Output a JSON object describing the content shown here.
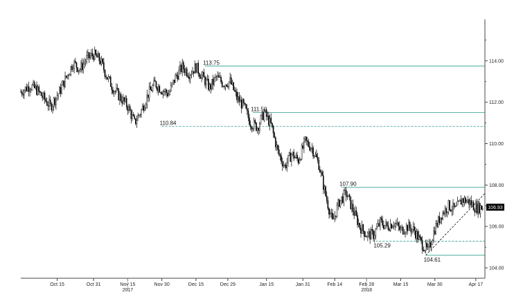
{
  "chart_data": {
    "type": "line",
    "style": "candlestick",
    "title": "",
    "xlabel": "",
    "ylabel": "",
    "ylim": [
      103.5,
      116.0
    ],
    "grid": false,
    "axis_side": "right",
    "y_ticks": [
      104.0,
      106.0,
      108.0,
      110.0,
      112.0,
      114.0
    ],
    "y_tick_labels": [
      "104.00",
      "106.00",
      "108.00",
      "110.00",
      "112.00",
      "114.00"
    ],
    "x_range": [
      "2017-09-29",
      "2018-04-21"
    ],
    "x_ticks": [
      {
        "date": "2017-10-15",
        "label": "Oct 15"
      },
      {
        "date": "2017-10-31",
        "label": "Oct 31"
      },
      {
        "date": "2017-11-15",
        "label": "Nov 15"
      },
      {
        "date": "2017-11-30",
        "label": "Nov 30"
      },
      {
        "date": "2017-12-15",
        "label": "Dec 15"
      },
      {
        "date": "2017-12-29",
        "label": "Dec 29"
      },
      {
        "date": "2018-01-15",
        "label": "Jan 15"
      },
      {
        "date": "2018-01-31",
        "label": "Jan 31"
      },
      {
        "date": "2018-02-14",
        "label": "Feb 14"
      },
      {
        "date": "2018-02-28",
        "label": "Feb 28"
      },
      {
        "date": "2018-03-15",
        "label": "Mar 15"
      },
      {
        "date": "2018-03-30",
        "label": "Mar 30"
      },
      {
        "date": "2018-04-17",
        "label": "Apr 17"
      }
    ],
    "year_labels": [
      {
        "date": "2017-11-15",
        "label": "2017"
      },
      {
        "date": "2018-02-28",
        "label": "2018"
      }
    ],
    "series": [
      {
        "x": [
          "2017-09-29",
          "2017-10-03",
          "2017-10-06",
          "2017-10-09",
          "2017-10-12",
          "2017-10-16",
          "2017-10-19",
          "2017-10-22",
          "2017-10-25",
          "2017-10-28",
          "2017-10-31",
          "2017-11-03",
          "2017-11-06",
          "2017-11-09",
          "2017-11-12",
          "2017-11-15",
          "2017-11-18",
          "2017-11-21",
          "2017-11-24",
          "2017-11-27",
          "2017-11-30",
          "2017-12-03",
          "2017-12-06",
          "2017-12-09",
          "2017-12-12",
          "2017-12-15",
          "2017-12-18",
          "2017-12-21",
          "2017-12-24",
          "2017-12-27",
          "2017-12-30",
          "2018-01-02",
          "2018-01-05",
          "2018-01-08",
          "2018-01-11",
          "2018-01-14",
          "2018-01-17",
          "2018-01-20",
          "2018-01-23",
          "2018-01-26",
          "2018-01-29",
          "2018-02-01",
          "2018-02-04",
          "2018-02-07",
          "2018-02-10",
          "2018-02-13",
          "2018-02-16",
          "2018-02-19",
          "2018-02-22",
          "2018-02-25",
          "2018-02-28",
          "2018-03-03",
          "2018-03-06",
          "2018-03-09",
          "2018-03-12",
          "2018-03-15",
          "2018-03-18",
          "2018-03-21",
          "2018-03-24",
          "2018-03-27",
          "2018-03-30",
          "2018-04-02",
          "2018-04-05",
          "2018-04-08",
          "2018-04-11",
          "2018-04-14",
          "2018-04-17",
          "2018-04-20"
        ],
        "values": [
          112.5,
          112.8,
          112.6,
          112.2,
          111.8,
          112.5,
          113.2,
          113.9,
          113.6,
          114.1,
          114.3,
          114.0,
          113.2,
          112.6,
          112.2,
          111.8,
          111.0,
          111.6,
          112.4,
          112.9,
          112.6,
          112.4,
          113.2,
          113.7,
          113.4,
          113.7,
          113.2,
          112.7,
          113.2,
          112.9,
          113.0,
          112.2,
          111.8,
          111.0,
          110.8,
          111.5,
          110.9,
          109.6,
          108.9,
          109.5,
          109.2,
          110.1,
          109.8,
          109.0,
          107.5,
          106.2,
          107.2,
          107.6,
          106.8,
          106.0,
          105.6,
          105.6,
          106.2,
          106.0,
          106.2,
          105.8,
          106.0,
          105.8,
          105.2,
          104.8,
          105.9,
          106.6,
          107.0,
          106.8,
          107.3,
          107.2,
          106.9,
          106.93
        ]
      }
    ],
    "annotations": [
      {
        "label": "113.75",
        "value": 113.75,
        "date": "2017-12-19",
        "line_style": "solid",
        "line_from": "2017-12-19"
      },
      {
        "label": "111.50",
        "value": 111.5,
        "date": "2018-01-09",
        "line_style": "solid",
        "line_from": "2018-01-09"
      },
      {
        "label": "110.84",
        "value": 110.84,
        "date": "2017-11-30",
        "line_style": "dashed",
        "line_from": "2017-11-30"
      },
      {
        "label": "107.90",
        "value": 107.9,
        "date": "2018-02-17",
        "line_style": "solid",
        "line_from": "2018-02-17"
      },
      {
        "label": "105.29",
        "value": 105.29,
        "date": "2018-03-04",
        "line_style": "dashed",
        "line_from": "2018-03-04"
      },
      {
        "label": "104.61",
        "value": 104.61,
        "date": "2018-03-26",
        "line_style": "solid",
        "line_from": "2018-03-26"
      }
    ],
    "trendline": {
      "start": {
        "date": "2018-03-26",
        "value": 104.61
      },
      "end": {
        "date": "2018-04-21",
        "value": 107.6
      },
      "line_style": "dashed"
    },
    "last_price": {
      "label": "106.93",
      "value": 106.93
    }
  }
}
